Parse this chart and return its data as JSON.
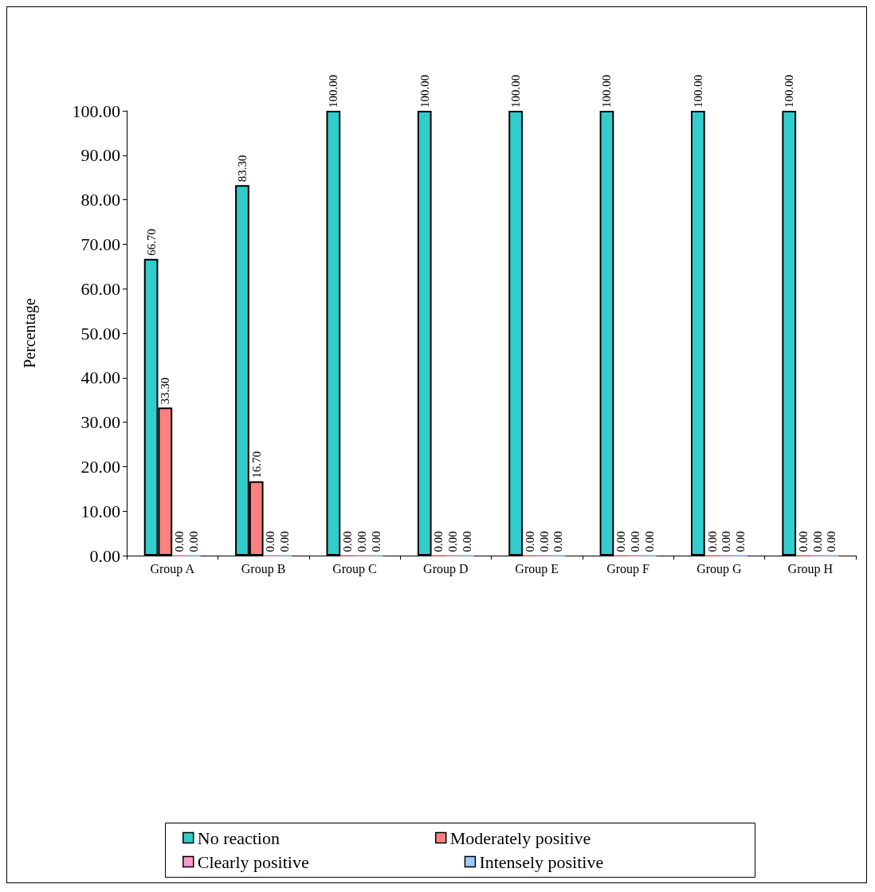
{
  "chart_data": {
    "type": "bar",
    "ylabel": "Percentage",
    "categories": [
      "Group A",
      "Group B",
      "Group C",
      "Group D",
      "Group E",
      "Group F",
      "Group G",
      "Group H"
    ],
    "series": [
      {
        "name": "No reaction",
        "color": "#33cccc",
        "values": [
          66.7,
          83.3,
          100,
          100,
          100,
          100,
          100,
          100
        ],
        "value_labels": [
          "66.70",
          "83.30",
          "100.00",
          "100.00",
          "100.00",
          "100.00",
          "100.00",
          "100.00"
        ]
      },
      {
        "name": "Moderately positive",
        "color": "#ff8080",
        "values": [
          33.3,
          16.7,
          0,
          0,
          0,
          0,
          0,
          0
        ],
        "value_labels": [
          "33.30",
          "16.70",
          "0.00",
          "0.00",
          "0.00",
          "0.00",
          "0.00",
          "0.00"
        ]
      },
      {
        "name": "Clearly positive",
        "color": "#ff99cc",
        "values": [
          0,
          0,
          0,
          0,
          0,
          0,
          0,
          0
        ],
        "value_labels": [
          "0.00",
          "0.00",
          "0.00",
          "0.00",
          "0.00",
          "0.00",
          "0.00",
          "0.00"
        ]
      },
      {
        "name": "Intensely positive",
        "color": "#99ccff",
        "values": [
          0,
          0,
          0,
          0,
          0,
          0,
          0,
          0
        ],
        "value_labels": [
          "0.00",
          "0.00",
          "0.00",
          "0.00",
          "0.00",
          "0.00",
          "0.00",
          "0.00"
        ]
      }
    ],
    "ylim": [
      0,
      100
    ],
    "yticks": [
      {
        "value": 0,
        "label": "0.00"
      },
      {
        "value": 10,
        "label": "10.00"
      },
      {
        "value": 20,
        "label": "20.00"
      },
      {
        "value": 30,
        "label": "30.00"
      },
      {
        "value": 40,
        "label": "40.00"
      },
      {
        "value": 50,
        "label": "50.00"
      },
      {
        "value": 60,
        "label": "60.00"
      },
      {
        "value": 70,
        "label": "70.00"
      },
      {
        "value": 80,
        "label": "80.00"
      },
      {
        "value": 90,
        "label": "90.00"
      },
      {
        "value": 100,
        "label": "100.00"
      }
    ],
    "legend": "bottom",
    "grid": false
  }
}
